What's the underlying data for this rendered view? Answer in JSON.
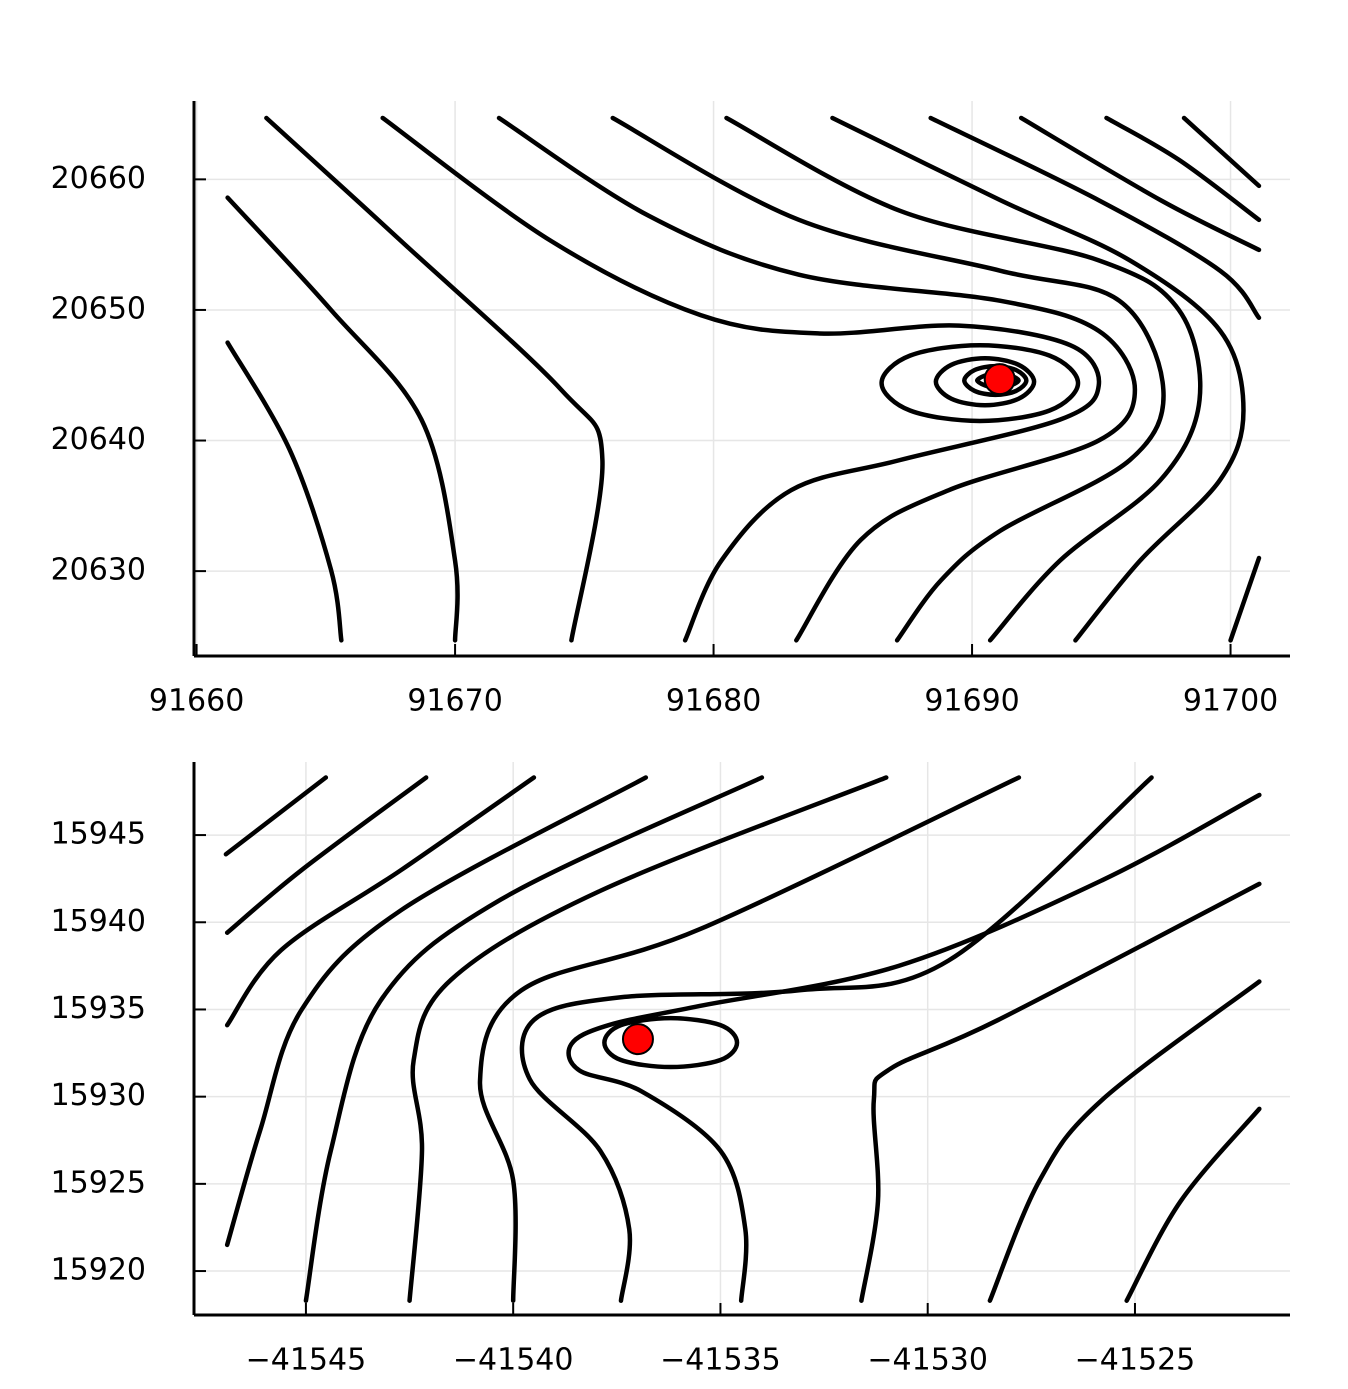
{
  "chart_data": [
    {
      "type": "contour",
      "xlim": [
        91659.9,
        91702.3
      ],
      "ylim": [
        20623.5,
        20666.0
      ],
      "xticks": [
        91660,
        91670,
        91680,
        91690,
        91700
      ],
      "yticks": [
        20630,
        20640,
        20650,
        20660
      ],
      "grid": true,
      "line_color": "#000000",
      "contours": [
        {
          "x": [
            91661.2,
            91663.6,
            91665.2,
            91665.6
          ],
          "y": [
            20647.5,
            20639.3,
            20630.1,
            20624.7
          ]
        },
        {
          "x": [
            91661.2,
            91665.2,
            91668.7,
            91670.0,
            91670.0
          ],
          "y": [
            20658.6,
            20650.0,
            20641.6,
            20630.8,
            20624.7
          ]
        },
        {
          "x": [
            91662.7,
            91667.9,
            91674.1,
            91675.7,
            91674.5
          ],
          "y": [
            20664.7,
            20655.3,
            20643.9,
            20638.5,
            20624.7
          ]
        },
        {
          "x": [
            91667.2,
            91673.7,
            91679.5,
            91684.1,
            91689.5,
            91693.8,
            91694.9,
            91693.4,
            91687.2,
            91683.0,
            91680.3,
            91678.9
          ],
          "y": [
            20664.7,
            20655.3,
            20649.6,
            20648.2,
            20648.8,
            20647.3,
            20644.2,
            20641.6,
            20638.5,
            20636.2,
            20630.8,
            20624.7
          ]
        },
        {
          "x": [
            91694.1,
            91693.0,
            91690.3,
            91687.6,
            91686.5,
            91687.6,
            91690.3,
            91693.0
          ],
          "y": [
            20644.4,
            20646.5,
            20647.3,
            20646.5,
            20644.4,
            20642.3,
            20641.5,
            20642.3
          ],
          "closed": true
        },
        {
          "x": [
            91692.4,
            91691.8,
            91690.5,
            91689.2,
            91688.6,
            91689.2,
            91690.5,
            91691.8
          ],
          "y": [
            20644.5,
            20645.8,
            20646.3,
            20645.8,
            20644.5,
            20643.2,
            20642.7,
            20643.2
          ],
          "closed": true
        },
        {
          "x": [
            91692.1,
            91691.7,
            91690.9,
            91690.1,
            91689.7,
            91690.1,
            91690.9,
            91691.7
          ],
          "y": [
            20644.6,
            20645.4,
            20645.7,
            20645.4,
            20644.6,
            20643.8,
            20643.5,
            20643.8
          ],
          "closed": true
        },
        {
          "x": [
            91691.8,
            91691.0,
            91690.2,
            91691.0
          ],
          "y": [
            20644.6,
            20645.2,
            20644.6,
            20644.0
          ],
          "closed": true
        },
        {
          "x": [
            91671.7,
            91677.5,
            91683.3,
            91691.1,
            91694.9,
            91696.3,
            91694.9,
            91689.1,
            91685.7,
            91683.2
          ],
          "y": [
            20664.7,
            20657.2,
            20652.7,
            20650.7,
            20648.4,
            20643.9,
            20640.0,
            20636.2,
            20632.4,
            20624.7
          ]
        },
        {
          "x": [
            91676.1,
            91683.3,
            91691.1,
            91695.7,
            91697.4,
            91696.1,
            91691.1,
            91688.8,
            91687.1
          ],
          "y": [
            20664.7,
            20656.9,
            20653.0,
            20650.7,
            20643.9,
            20638.5,
            20633.1,
            20629.3,
            20624.7
          ]
        },
        {
          "x": [
            91680.5,
            91687.2,
            91694.9,
            91698.0,
            91698.8,
            91697.3,
            91693.4,
            91690.7
          ],
          "y": [
            20664.7,
            20657.6,
            20653.8,
            20650.0,
            20643.1,
            20637.0,
            20630.8,
            20624.7
          ]
        },
        {
          "x": [
            91684.6,
            91691.1,
            91696.1,
            91699.6,
            91700.5,
            91699.6,
            91696.5,
            91694.0
          ],
          "y": [
            20664.7,
            20658.4,
            20653.8,
            20648.4,
            20642.3,
            20637.0,
            20630.8,
            20624.7
          ]
        },
        {
          "x": [
            91688.4,
            91694.9,
            91699.6,
            91701.1
          ],
          "y": [
            20664.7,
            20658.4,
            20653.0,
            20649.4
          ]
        },
        {
          "x": [
            91691.9,
            91697.3,
            91701.1
          ],
          "y": [
            20664.7,
            20658.4,
            20654.6
          ]
        },
        {
          "x": [
            91695.2,
            91698.0,
            91701.1
          ],
          "y": [
            20664.7,
            20661.5,
            20656.9
          ]
        },
        {
          "x": [
            91698.2,
            91701.1
          ],
          "y": [
            20664.7,
            20659.5
          ]
        },
        {
          "x": [
            91700.0,
            91701.1
          ],
          "y": [
            20624.7,
            20631.0
          ]
        }
      ],
      "points": {
        "x": [
          91691.07
        ],
        "y": [
          20644.7
        ],
        "color": "#ff0000"
      }
    },
    {
      "type": "contour",
      "xlim": [
        -41547.7,
        -41521.26
      ],
      "ylim": [
        15917.48,
        15949.19
      ],
      "xticks": [
        {
          "value": -41545,
          "label": "−41545"
        },
        {
          "value": -41540,
          "label": "−41540"
        },
        {
          "value": -41535,
          "label": "−41535"
        },
        {
          "value": -41530,
          "label": "−41530"
        },
        {
          "value": -41525,
          "label": "−41525"
        }
      ],
      "yticks": [
        15920,
        15925,
        15930,
        15935,
        15940,
        15945
      ],
      "grid": true,
      "line_color": "#000000",
      "contours": [
        {
          "x": [
            -41546.93,
            -41544.52
          ],
          "y": [
            15943.9,
            15948.3
          ]
        },
        {
          "x": [
            -41546.9,
            -41545.1,
            -41542.1
          ],
          "y": [
            15939.4,
            15943.0,
            15948.3
          ]
        },
        {
          "x": [
            -41546.9,
            -41545.6,
            -41542.7,
            -41539.5
          ],
          "y": [
            15934.1,
            15938.4,
            15943.0,
            15948.3
          ]
        },
        {
          "x": [
            -41546.9,
            -41546.1,
            -41545.1,
            -41542.7,
            -41536.8
          ],
          "y": [
            15921.5,
            15928.1,
            15935.0,
            15940.7,
            15948.3
          ]
        },
        {
          "x": [
            -41545.0,
            -41544.4,
            -41543.2,
            -41540.3,
            -41534.0
          ],
          "y": [
            15918.3,
            15926.9,
            15935.5,
            15941.3,
            15948.3
          ]
        },
        {
          "x": [
            -41542.5,
            -41542.2,
            -41542.4,
            -41541.5,
            -41537.9,
            -41531.0
          ],
          "y": [
            15918.3,
            15926.9,
            15932.1,
            15936.7,
            15941.8,
            15948.3
          ]
        },
        {
          "x": [
            -41540.0,
            -41540.0,
            -41540.8,
            -41539.8,
            -41535.5,
            -41527.8
          ],
          "y": [
            15918.3,
            15925.2,
            15930.9,
            15936.1,
            15939.6,
            15948.3
          ]
        },
        {
          "x": [
            -41537.4,
            -41537.2,
            -41537.9,
            -41539.6,
            -41539.5,
            -41537.4,
            -41533.1,
            -41529.5,
            -41524.6
          ],
          "y": [
            15918.3,
            15922.4,
            15926.9,
            15931.0,
            15934.4,
            15935.7,
            15936.1,
            15937.8,
            15948.3
          ]
        },
        {
          "x": [
            -41534.5,
            -41534.4,
            -41535.0,
            -41536.9,
            -41538.4,
            -41538.6,
            -41537.7,
            -41535.5,
            -41530.7,
            -41525.8,
            -41522.0
          ],
          "y": [
            15918.3,
            15922.4,
            15926.9,
            15930.3,
            15931.5,
            15933.0,
            15934.1,
            15935.2,
            15937.5,
            15942.4,
            15947.3
          ]
        },
        {
          "x": [
            -41534.6,
            -41535.0,
            -41536.2,
            -41537.4,
            -41537.8,
            -41537.4,
            -41536.2,
            -41535.0
          ],
          "y": [
            15933.1,
            15934.1,
            15934.5,
            15934.1,
            15933.1,
            15932.1,
            15931.7,
            15932.1
          ],
          "closed": true
        },
        {
          "x": [
            -41531.6,
            -41531.2,
            -41531.3,
            -41530.9,
            -41528.3,
            -41522.0
          ],
          "y": [
            15918.3,
            15924.0,
            15929.8,
            15931.6,
            15934.4,
            15942.2
          ]
        },
        {
          "x": [
            -41528.5,
            -41527.3,
            -41525.8,
            -41522.0
          ],
          "y": [
            15918.3,
            15925.2,
            15929.8,
            15936.6
          ]
        },
        {
          "x": [
            -41525.2,
            -41523.9,
            -41522.0
          ],
          "y": [
            15918.3,
            15924.0,
            15929.3
          ]
        }
      ],
      "points": {
        "x": [
          -41536.99
        ],
        "y": [
          15933.3
        ],
        "color": "#ff0000"
      }
    }
  ]
}
